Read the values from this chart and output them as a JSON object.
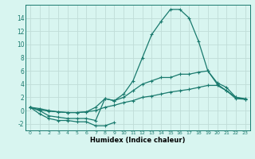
{
  "xlabel": "Humidex (Indice chaleur)",
  "x": [
    0,
    1,
    2,
    3,
    4,
    5,
    6,
    7,
    8,
    9,
    10,
    11,
    12,
    13,
    14,
    15,
    16,
    17,
    18,
    19,
    20,
    21,
    22,
    23
  ],
  "line_main": [
    0.5,
    0.0,
    -0.8,
    -1.0,
    -1.2,
    -1.2,
    -1.2,
    -1.5,
    1.8,
    1.5,
    2.5,
    4.5,
    8.0,
    11.5,
    13.5,
    15.3,
    15.3,
    14.0,
    10.5,
    6.0,
    4.0,
    3.0,
    2.0,
    1.7
  ],
  "line_dip": [
    0.5,
    -0.5,
    -1.2,
    -1.5,
    -1.5,
    -1.7,
    -1.7,
    -2.3,
    -2.3,
    -1.8,
    null,
    null,
    null,
    null,
    null,
    null,
    null,
    null,
    null,
    null,
    null,
    null,
    null,
    null
  ],
  "line_upper": [
    0.5,
    0.3,
    0.0,
    -0.2,
    -0.3,
    -0.3,
    -0.2,
    0.5,
    1.8,
    1.5,
    2.0,
    3.0,
    4.0,
    4.5,
    5.0,
    5.0,
    5.5,
    5.5,
    5.8,
    6.0,
    4.2,
    3.5,
    2.0,
    1.8
  ],
  "line_lower": [
    0.5,
    0.1,
    -0.1,
    -0.2,
    -0.3,
    -0.3,
    -0.2,
    0.0,
    0.5,
    0.8,
    1.2,
    1.5,
    2.0,
    2.2,
    2.5,
    2.8,
    3.0,
    3.2,
    3.5,
    3.8,
    3.8,
    3.0,
    1.8,
    1.7
  ],
  "color": "#1a7a6e",
  "bg_color": "#d8f5f0",
  "grid_color": "#c0ddd8",
  "ylim": [
    -3,
    16
  ],
  "yticks": [
    -2,
    0,
    2,
    4,
    6,
    8,
    10,
    12,
    14
  ],
  "xlim": [
    -0.5,
    23.5
  ],
  "xticks": [
    0,
    1,
    2,
    3,
    4,
    5,
    6,
    7,
    8,
    9,
    10,
    11,
    12,
    13,
    14,
    15,
    16,
    17,
    18,
    19,
    20,
    21,
    22,
    23
  ]
}
